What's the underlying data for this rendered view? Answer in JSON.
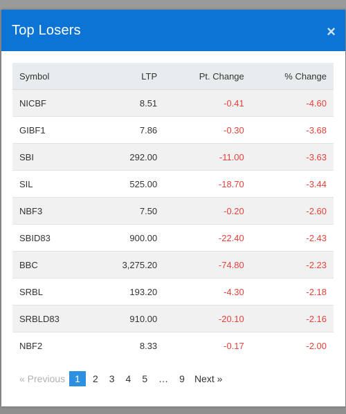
{
  "modal": {
    "title": "Top Losers",
    "close_label": "×"
  },
  "table": {
    "headers": [
      "Symbol",
      "LTP",
      "Pt. Change",
      "% Change"
    ],
    "rows": [
      [
        "NICBF",
        "8.51",
        "-0.41",
        "-4.60"
      ],
      [
        "GIBF1",
        "7.86",
        "-0.30",
        "-3.68"
      ],
      [
        "SBI",
        "292.00",
        "-11.00",
        "-3.63"
      ],
      [
        "SIL",
        "525.00",
        "-18.70",
        "-3.44"
      ],
      [
        "NBF3",
        "7.50",
        "-0.20",
        "-2.60"
      ],
      [
        "SBID83",
        "900.00",
        "-22.40",
        "-2.43"
      ],
      [
        "BBC",
        "3,275.20",
        "-74.80",
        "-2.23"
      ],
      [
        "SRBL",
        "193.20",
        "-4.30",
        "-2.18"
      ],
      [
        "SRBLD83",
        "910.00",
        "-20.10",
        "-2.16"
      ],
      [
        "NBF2",
        "8.33",
        "-0.17",
        "-2.00"
      ]
    ]
  },
  "pagination": {
    "previous": "«  Previous",
    "pages": [
      "1",
      "2",
      "3",
      "4",
      "5"
    ],
    "ellipsis": "…",
    "last_page": "9",
    "next": "Next  »",
    "active_page": "1"
  },
  "colors": {
    "header_bg": "#0b74d4",
    "negative": "#e8403a",
    "active_page": "#2d8fe0"
  }
}
